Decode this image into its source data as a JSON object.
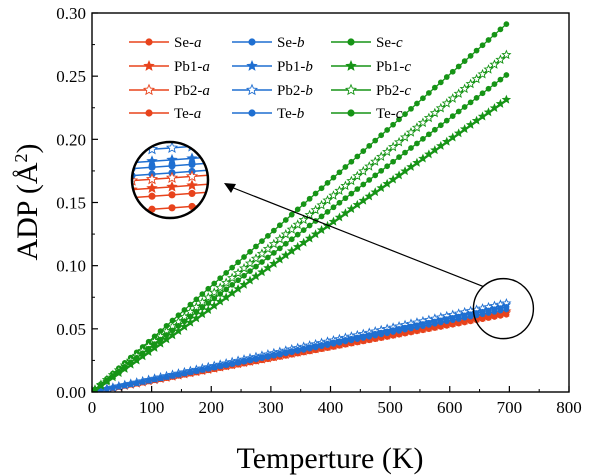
{
  "chart_data": {
    "type": "line",
    "xlabel": "Temperture (K)",
    "ylabel": "ADP (Å²)",
    "ylabel_parts": {
      "main": "ADP (Å",
      "sup": "2",
      "close": ")"
    },
    "xlim": [
      0,
      800
    ],
    "ylim": [
      0,
      0.3
    ],
    "xticks": [
      "0",
      "100",
      "200",
      "300",
      "400",
      "500",
      "600",
      "700",
      "800"
    ],
    "yticks": [
      "0.00",
      "0.05",
      "0.10",
      "0.15",
      "0.20",
      "0.25",
      "0.30"
    ],
    "x_start": 5,
    "x_end": 700,
    "x_step": 10,
    "legend_position": "top-left",
    "colors": {
      "a": "#e8431c",
      "b": "#1f6fd1",
      "c": "#169416"
    },
    "series": [
      {
        "name": "Se-a",
        "element": "Se",
        "axis": "a",
        "marker": "circle",
        "slope": 8.8e-05
      },
      {
        "name": "Pb1-a",
        "element": "Pb1",
        "axis": "a",
        "marker": "star",
        "slope": 9e-05
      },
      {
        "name": "Pb2-a",
        "element": "Pb2",
        "axis": "a",
        "marker": "star-open",
        "slope": 9.2e-05
      },
      {
        "name": "Te-a",
        "element": "Te",
        "axis": "a",
        "marker": "circle",
        "slope": 8.9e-05
      },
      {
        "name": "Se-b",
        "element": "Se",
        "axis": "b",
        "marker": "circle",
        "slope": 9.4e-05
      },
      {
        "name": "Pb1-b",
        "element": "Pb1",
        "axis": "b",
        "marker": "star",
        "slope": 9.9e-05
      },
      {
        "name": "Pb2-b",
        "element": "Pb2",
        "axis": "b",
        "marker": "star-open",
        "slope": 0.000101
      },
      {
        "name": "Te-b",
        "element": "Te",
        "axis": "b",
        "marker": "circle",
        "slope": 9.7e-05
      },
      {
        "name": "Se-c",
        "element": "Se",
        "axis": "c",
        "marker": "circle",
        "slope": 0.000419
      },
      {
        "name": "Pb1-c",
        "element": "Pb1",
        "axis": "c",
        "marker": "star",
        "slope": 0.000333
      },
      {
        "name": "Pb2-c",
        "element": "Pb2",
        "axis": "c",
        "marker": "star-open",
        "slope": 0.000384
      },
      {
        "name": "Te-c",
        "element": "Te",
        "axis": "c",
        "marker": "circle",
        "slope": 0.000361
      }
    ],
    "legend_rows": [
      [
        "Se-a",
        "Se-b",
        "Se-c"
      ],
      [
        "Pb1-a",
        "Pb1-b",
        "Pb1-c"
      ],
      [
        "Pb2-a",
        "Pb2-b",
        "Pb2-c"
      ],
      [
        "Te-a",
        "Te-b",
        "Te-c"
      ]
    ],
    "annotation": {
      "type": "zoom-inset",
      "target_x": 690,
      "target_y": 0.066
    }
  }
}
